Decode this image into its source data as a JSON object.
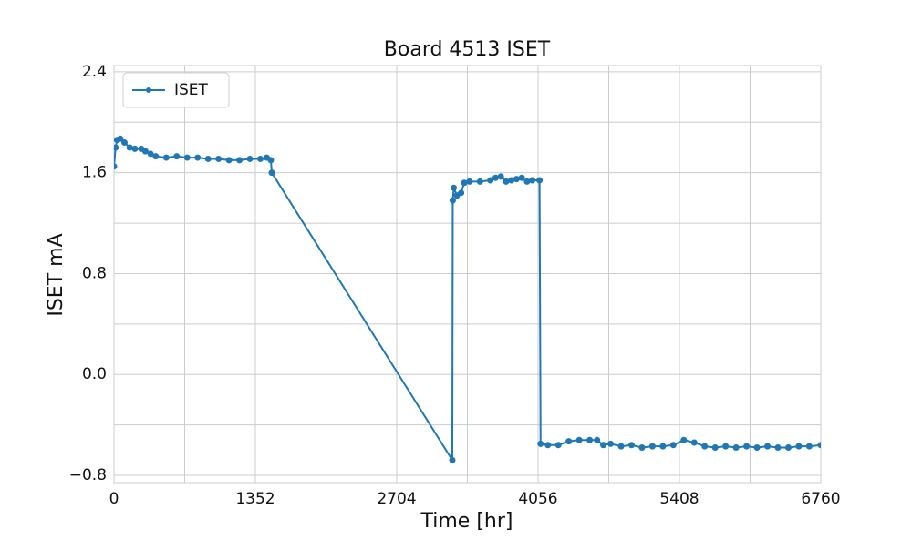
{
  "chart_data": {
    "type": "line",
    "title": "Board 4513 ISET",
    "xlabel": "Time [hr]",
    "ylabel": "ISET mA",
    "xlim": [
      0,
      6760
    ],
    "ylim": [
      -0.858,
      2.45
    ],
    "xticks": [
      0,
      1352,
      2704,
      4056,
      5408,
      6760
    ],
    "xminorticks": [
      676,
      2028,
      3380,
      4732,
      6084
    ],
    "yticks": [
      {
        "value": -0.8,
        "label": "−0.8"
      },
      {
        "value": 0,
        "label": "0.0"
      },
      0.8,
      1.6,
      2.4
    ],
    "yminorticks": [
      -0.4,
      0.4,
      1.2,
      2.0
    ],
    "grid": true,
    "legend": "upper left",
    "series": [
      {
        "name": "ISET",
        "color": "#1f77b4",
        "x": [
          0,
          15,
          30,
          60,
          100,
          150,
          200,
          260,
          300,
          350,
          400,
          500,
          600,
          700,
          800,
          900,
          1000,
          1100,
          1200,
          1300,
          1400,
          1460,
          1500,
          1509,
          3236,
          3240,
          3250,
          3280,
          3320,
          3350,
          3400,
          3500,
          3600,
          3650,
          3700,
          3750,
          3800,
          3850,
          3900,
          3950,
          4000,
          4070,
          4080,
          4150,
          4250,
          4350,
          4450,
          4550,
          4620,
          4680,
          4750,
          4850,
          4950,
          5050,
          5150,
          5250,
          5350,
          5450,
          5550,
          5650,
          5750,
          5850,
          5950,
          6050,
          6150,
          6250,
          6350,
          6450,
          6550,
          6650,
          6760
        ],
        "values": [
          1.65,
          1.8,
          1.86,
          1.87,
          1.84,
          1.8,
          1.79,
          1.79,
          1.77,
          1.75,
          1.73,
          1.72,
          1.73,
          1.72,
          1.72,
          1.71,
          1.71,
          1.7,
          1.7,
          1.71,
          1.71,
          1.72,
          1.7,
          1.6,
          -0.68,
          1.38,
          1.48,
          1.42,
          1.44,
          1.52,
          1.53,
          1.53,
          1.54,
          1.56,
          1.57,
          1.53,
          1.54,
          1.55,
          1.56,
          1.53,
          1.54,
          1.54,
          -0.55,
          -0.56,
          -0.56,
          -0.53,
          -0.52,
          -0.52,
          -0.52,
          -0.56,
          -0.55,
          -0.57,
          -0.56,
          -0.58,
          -0.57,
          -0.57,
          -0.56,
          -0.52,
          -0.54,
          -0.57,
          -0.58,
          -0.57,
          -0.58,
          -0.57,
          -0.58,
          -0.57,
          -0.58,
          -0.58,
          -0.57,
          -0.57,
          -0.56
        ]
      }
    ]
  }
}
